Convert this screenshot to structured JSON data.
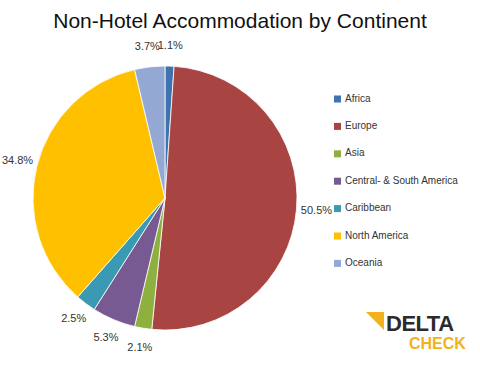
{
  "chart_data": {
    "type": "pie",
    "title": "Non-Hotel Accommodation by Continent",
    "categories": [
      "Africa",
      "Europe",
      "Asia",
      "Central- & South America",
      "Caribbean",
      "North America",
      "Oceania"
    ],
    "values": [
      1.1,
      50.5,
      2.1,
      5.3,
      2.5,
      34.8,
      3.7
    ],
    "value_labels": [
      "1.1%",
      "50.5%",
      "2.1%",
      "5.3%",
      "2.5%",
      "34.8%",
      "3.7%"
    ],
    "colors": [
      "#3f73b0",
      "#a84441",
      "#8db03f",
      "#785a92",
      "#3a9ab3",
      "#ffc000",
      "#93a9d3"
    ],
    "data_labels": true,
    "legend": "right",
    "annotations": [
      "DELTA",
      "CHECK"
    ]
  }
}
